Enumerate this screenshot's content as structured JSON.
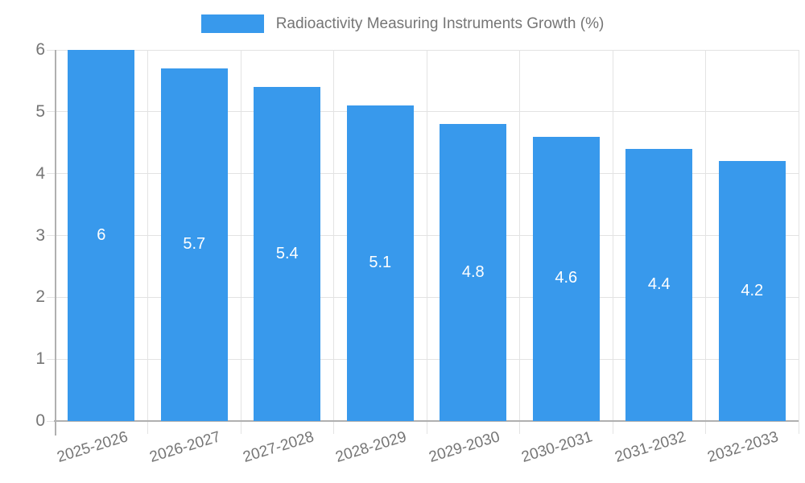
{
  "chart_data": {
    "type": "bar",
    "title": "Radioactivity Measuring Instruments Growth (%)",
    "categories": [
      "2025-2026",
      "2026-2027",
      "2027-2028",
      "2028-2029",
      "2029-2030",
      "2030-2031",
      "2031-2032",
      "2032-2033"
    ],
    "values": [
      6,
      5.7,
      5.4,
      5.1,
      4.8,
      4.6,
      4.4,
      4.2
    ],
    "value_labels": [
      "6",
      "5.7",
      "5.4",
      "5.1",
      "4.8",
      "4.6",
      "4.4",
      "4.2"
    ],
    "xlabel": "",
    "ylabel": "",
    "ylim": [
      0,
      6
    ],
    "yticks": [
      0,
      1,
      2,
      3,
      4,
      5,
      6
    ],
    "grid": true,
    "legend_position": "top",
    "colors": {
      "bar": "#3899EC",
      "value_label": "#ffffff",
      "axis_text": "#757575",
      "grid_line": "#e3e3e3",
      "axis_line": "#b0b0b0"
    }
  }
}
